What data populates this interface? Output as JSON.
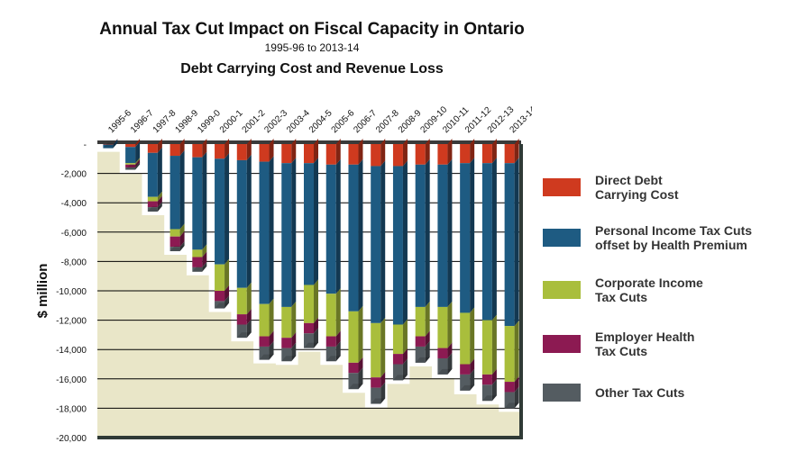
{
  "title": "Annual Tax Cut Impact on Fiscal Capacity in Ontario",
  "subtitle": "1995-96 to 2013-14",
  "subtitle2": "Debt Carrying Cost and Revenue Loss",
  "colors": {
    "debt": "#cf3a1f",
    "personal": "#1e5b82",
    "corporate": "#a9be3c",
    "employer": "#8c1a52",
    "other": "#545c61",
    "plot_bg": "#e9e6c8",
    "frame": "#2f3a36"
  },
  "legend": [
    {
      "key": "debt",
      "label": "Direct Debt\nCarrying Cost"
    },
    {
      "key": "personal",
      "label": "Personal Income Tax Cuts\noffset by Health Premium"
    },
    {
      "key": "corporate",
      "label": "Corporate Income\nTax Cuts"
    },
    {
      "key": "employer",
      "label": "Employer Health\nTax Cuts"
    },
    {
      "key": "other",
      "label": "Other Tax Cuts"
    }
  ],
  "chart_data": {
    "type": "bar",
    "stacked": true,
    "style": "3d",
    "ylabel": "$ million",
    "ylim": [
      -20000,
      0
    ],
    "yticks": [
      "-",
      "-2,000",
      "-4,000",
      "-6,000",
      "-8,000",
      "-10,000",
      "-12,000",
      "-14,000",
      "-16,000",
      "-18,000",
      "-20,000"
    ],
    "grid": true,
    "legend_position": "right",
    "categories": [
      "1995-6",
      "1996-7",
      "1997-8",
      "1998-9",
      "1999-0",
      "2000-1",
      "2001-2",
      "2002-3",
      "2003-4",
      "2004-5",
      "2005-6",
      "2006-7",
      "2007-8",
      "2008-9",
      "2009-10",
      "2010-11",
      "2011-12",
      "2012-13",
      "2013-14"
    ],
    "series": [
      {
        "name": "Direct Debt Carrying Cost",
        "key": "debt",
        "values": [
          -30,
          -200,
          -600,
          -800,
          -900,
          -1000,
          -1100,
          -1200,
          -1300,
          -1300,
          -1400,
          -1400,
          -1500,
          -1500,
          -1400,
          -1400,
          -1300,
          -1300,
          -1300
        ]
      },
      {
        "name": "Personal Income Tax Cuts offset by Health Premium",
        "key": "personal",
        "values": [
          -250,
          -1100,
          -3000,
          -5000,
          -6300,
          -7200,
          -8700,
          -9700,
          -9800,
          -8300,
          -8800,
          -10000,
          -10700,
          -10800,
          -9700,
          -9700,
          -10200,
          -10700,
          -11100
        ]
      },
      {
        "name": "Corporate Income Tax Cuts",
        "key": "corporate",
        "values": [
          0,
          -100,
          -300,
          -500,
          -500,
          -1800,
          -1800,
          -2200,
          -2100,
          -2600,
          -2900,
          -3500,
          -3700,
          -2000,
          -2000,
          -2800,
          -3500,
          -3700,
          -3800
        ]
      },
      {
        "name": "Employer Health Tax Cuts",
        "key": "employer",
        "values": [
          0,
          -200,
          -400,
          -700,
          -700,
          -700,
          -700,
          -700,
          -700,
          -700,
          -700,
          -700,
          -700,
          -700,
          -700,
          -700,
          -700,
          -700,
          -700
        ]
      },
      {
        "name": "Other Tax Cuts",
        "key": "other",
        "values": [
          0,
          -150,
          -300,
          -300,
          -300,
          -500,
          -900,
          -900,
          -900,
          -1000,
          -1000,
          -1100,
          -1100,
          -1100,
          -1100,
          -1100,
          -1100,
          -1100,
          -1100
        ]
      }
    ]
  }
}
